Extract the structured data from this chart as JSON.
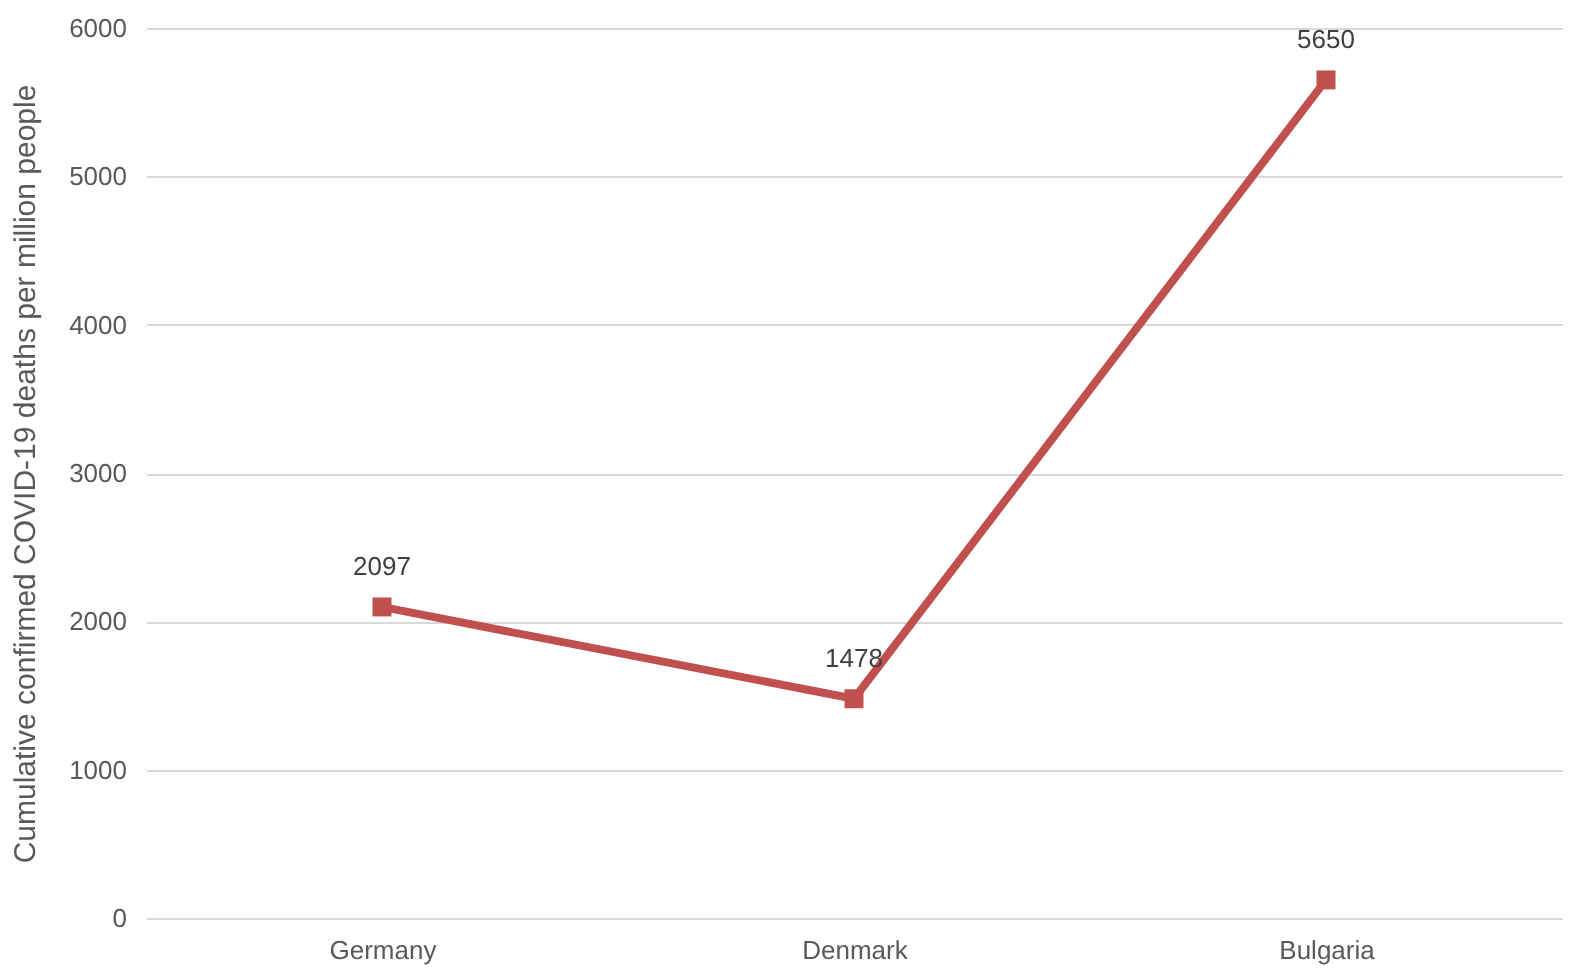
{
  "chart_data": {
    "type": "line",
    "ylabel": "Cumulative confirmed COVID-19 deaths per million people",
    "categories": [
      "Germany",
      "Denmark",
      "Bulgaria"
    ],
    "values": [
      2097,
      1478,
      5650
    ],
    "color": "#c0504d",
    "ylim": [
      0,
      6000
    ],
    "yticks": [
      0,
      1000,
      2000,
      3000,
      4000,
      5000,
      6000
    ],
    "grid": "y",
    "marker": "square",
    "line_style": "solid",
    "data_labels": true
  }
}
